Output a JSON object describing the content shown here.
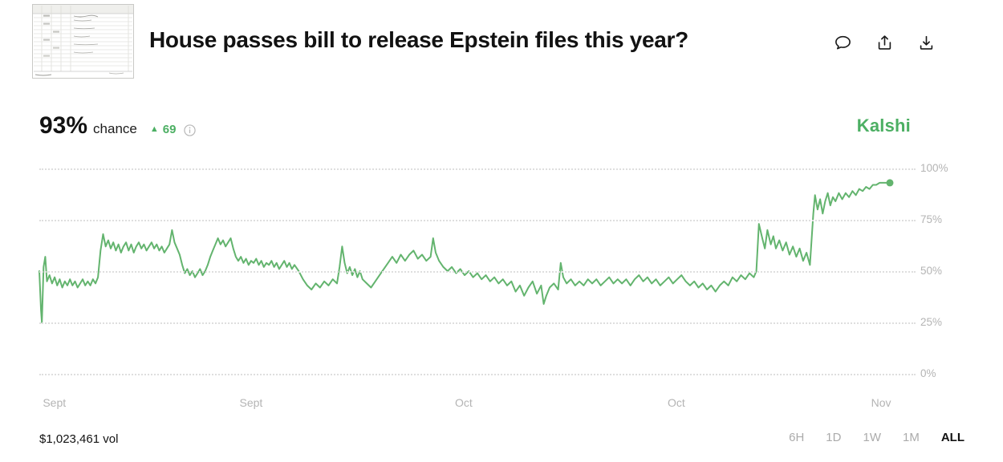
{
  "header": {
    "title": "House passes bill to release Epstein files this year?",
    "icons": {
      "comment": "speech-bubble-icon",
      "share": "share-up-arrow-icon",
      "download": "download-arrow-icon"
    }
  },
  "stats": {
    "chance": "93%",
    "chance_label": "chance",
    "delta_arrow": "▲",
    "delta": "69",
    "info_icon": "info-circle-icon"
  },
  "brand": {
    "name": "Kalshi"
  },
  "footer": {
    "volume": "$1,023,461 vol",
    "ranges": [
      "6H",
      "1D",
      "1W",
      "1M",
      "ALL"
    ],
    "active_range": "ALL"
  },
  "colors": {
    "line_green": "#63b46e",
    "brand_green": "#4caf63",
    "delta_green": "#4caf63",
    "axis_gray": "#b4b4b4",
    "grid_gray": "#dedede"
  },
  "chart_data": {
    "type": "line",
    "title": "House passes bill to release Epstein files this year?",
    "ylabel": "chance (%)",
    "ylim": [
      0,
      100
    ],
    "grid": true,
    "legend_position": "none",
    "y_ticks": [
      {
        "value": 0,
        "label": "0%"
      },
      {
        "value": 25,
        "label": "25%"
      },
      {
        "value": 50,
        "label": "50%"
      },
      {
        "value": 75,
        "label": "75%"
      },
      {
        "value": 100,
        "label": "100%"
      }
    ],
    "x_ticks": [
      {
        "pos": 0.4,
        "label": "Sept"
      },
      {
        "pos": 24.3,
        "label": "Sept"
      },
      {
        "pos": 48.7,
        "label": "Oct"
      },
      {
        "pos": 73.1,
        "label": "Oct"
      },
      {
        "pos": 96.6,
        "label": "Nov"
      }
    ],
    "end_value": 93,
    "points": [
      [
        0,
        50
      ],
      [
        0.2,
        31
      ],
      [
        0.3,
        25
      ],
      [
        0.5,
        52
      ],
      [
        0.7,
        57
      ],
      [
        0.9,
        45
      ],
      [
        1.2,
        48
      ],
      [
        1.5,
        44
      ],
      [
        1.8,
        47
      ],
      [
        2.1,
        43
      ],
      [
        2.4,
        46
      ],
      [
        2.7,
        42
      ],
      [
        3,
        45
      ],
      [
        3.3,
        43
      ],
      [
        3.6,
        46
      ],
      [
        3.9,
        43
      ],
      [
        4.2,
        45
      ],
      [
        4.5,
        42
      ],
      [
        4.8,
        44
      ],
      [
        5.1,
        46
      ],
      [
        5.4,
        43
      ],
      [
        5.7,
        45
      ],
      [
        6,
        43
      ],
      [
        6.3,
        46
      ],
      [
        6.6,
        44
      ],
      [
        6.9,
        47
      ],
      [
        7.2,
        60
      ],
      [
        7.5,
        68
      ],
      [
        7.8,
        62
      ],
      [
        8.1,
        65
      ],
      [
        8.4,
        61
      ],
      [
        8.7,
        64
      ],
      [
        9,
        60
      ],
      [
        9.3,
        63
      ],
      [
        9.6,
        59
      ],
      [
        9.9,
        62
      ],
      [
        10.2,
        64
      ],
      [
        10.5,
        60
      ],
      [
        10.8,
        63
      ],
      [
        11.1,
        59
      ],
      [
        11.4,
        62
      ],
      [
        11.7,
        64
      ],
      [
        12,
        61
      ],
      [
        12.3,
        63
      ],
      [
        12.6,
        60
      ],
      [
        12.9,
        62
      ],
      [
        13.2,
        64
      ],
      [
        13.5,
        61
      ],
      [
        13.8,
        63
      ],
      [
        14.1,
        60
      ],
      [
        14.4,
        62
      ],
      [
        14.7,
        59
      ],
      [
        15,
        61
      ],
      [
        15.3,
        63
      ],
      [
        15.6,
        70
      ],
      [
        15.9,
        64
      ],
      [
        16.2,
        61
      ],
      [
        16.5,
        58
      ],
      [
        16.8,
        53
      ],
      [
        17.1,
        49
      ],
      [
        17.4,
        51
      ],
      [
        17.7,
        48
      ],
      [
        18,
        50
      ],
      [
        18.3,
        47
      ],
      [
        18.6,
        49
      ],
      [
        18.9,
        51
      ],
      [
        19.2,
        48
      ],
      [
        19.5,
        50
      ],
      [
        19.8,
        53
      ],
      [
        20.1,
        57
      ],
      [
        20.4,
        60
      ],
      [
        20.7,
        63
      ],
      [
        21,
        66
      ],
      [
        21.3,
        63
      ],
      [
        21.6,
        65
      ],
      [
        21.9,
        62
      ],
      [
        22.2,
        64
      ],
      [
        22.5,
        66
      ],
      [
        22.8,
        61
      ],
      [
        23.1,
        57
      ],
      [
        23.4,
        55
      ],
      [
        23.7,
        57
      ],
      [
        24,
        54
      ],
      [
        24.3,
        56
      ],
      [
        24.6,
        53
      ],
      [
        24.9,
        55
      ],
      [
        25.2,
        54
      ],
      [
        25.5,
        56
      ],
      [
        25.8,
        53
      ],
      [
        26.1,
        55
      ],
      [
        26.4,
        52
      ],
      [
        26.7,
        54
      ],
      [
        27,
        53
      ],
      [
        27.3,
        55
      ],
      [
        27.6,
        52
      ],
      [
        27.9,
        54
      ],
      [
        28.2,
        51
      ],
      [
        28.5,
        53
      ],
      [
        28.8,
        55
      ],
      [
        29.1,
        52
      ],
      [
        29.4,
        54
      ],
      [
        29.7,
        51
      ],
      [
        30,
        53
      ],
      [
        30.5,
        50
      ],
      [
        31,
        46
      ],
      [
        31.5,
        43
      ],
      [
        32,
        41
      ],
      [
        32.5,
        44
      ],
      [
        33,
        42
      ],
      [
        33.5,
        45
      ],
      [
        34,
        43
      ],
      [
        34.5,
        46
      ],
      [
        35,
        44
      ],
      [
        35.3,
        52
      ],
      [
        35.6,
        62
      ],
      [
        35.9,
        54
      ],
      [
        36.2,
        49
      ],
      [
        36.5,
        52
      ],
      [
        36.8,
        48
      ],
      [
        37.1,
        51
      ],
      [
        37.4,
        47
      ],
      [
        37.7,
        50
      ],
      [
        38,
        46
      ],
      [
        38.5,
        44
      ],
      [
        39,
        42
      ],
      [
        39.5,
        45
      ],
      [
        40,
        48
      ],
      [
        40.5,
        51
      ],
      [
        41,
        54
      ],
      [
        41.5,
        57
      ],
      [
        42,
        54
      ],
      [
        42.5,
        58
      ],
      [
        43,
        55
      ],
      [
        43.5,
        58
      ],
      [
        44,
        60
      ],
      [
        44.5,
        56
      ],
      [
        45,
        58
      ],
      [
        45.5,
        55
      ],
      [
        46,
        57
      ],
      [
        46.3,
        66
      ],
      [
        46.6,
        59
      ],
      [
        47,
        55
      ],
      [
        47.5,
        52
      ],
      [
        48,
        50
      ],
      [
        48.5,
        52
      ],
      [
        49,
        49
      ],
      [
        49.5,
        51
      ],
      [
        50,
        48
      ],
      [
        50.5,
        50
      ],
      [
        51,
        47
      ],
      [
        51.5,
        49
      ],
      [
        52,
        46
      ],
      [
        52.5,
        48
      ],
      [
        53,
        45
      ],
      [
        53.5,
        47
      ],
      [
        54,
        44
      ],
      [
        54.5,
        46
      ],
      [
        55,
        43
      ],
      [
        55.5,
        45
      ],
      [
        56,
        40
      ],
      [
        56.5,
        43
      ],
      [
        57,
        38
      ],
      [
        57.5,
        42
      ],
      [
        58,
        45
      ],
      [
        58.5,
        39
      ],
      [
        59,
        43
      ],
      [
        59.3,
        34
      ],
      [
        59.6,
        38
      ],
      [
        60,
        42
      ],
      [
        60.5,
        44
      ],
      [
        61,
        41
      ],
      [
        61.3,
        54
      ],
      [
        61.6,
        47
      ],
      [
        62,
        44
      ],
      [
        62.5,
        46
      ],
      [
        63,
        43
      ],
      [
        63.5,
        45
      ],
      [
        64,
        43
      ],
      [
        64.5,
        46
      ],
      [
        65,
        44
      ],
      [
        65.5,
        46
      ],
      [
        66,
        43
      ],
      [
        66.5,
        45
      ],
      [
        67,
        47
      ],
      [
        67.5,
        44
      ],
      [
        68,
        46
      ],
      [
        68.5,
        44
      ],
      [
        69,
        46
      ],
      [
        69.5,
        43
      ],
      [
        70,
        46
      ],
      [
        70.5,
        48
      ],
      [
        71,
        45
      ],
      [
        71.5,
        47
      ],
      [
        72,
        44
      ],
      [
        72.5,
        46
      ],
      [
        73,
        43
      ],
      [
        73.5,
        45
      ],
      [
        74,
        47
      ],
      [
        74.5,
        44
      ],
      [
        75,
        46
      ],
      [
        75.5,
        48
      ],
      [
        76,
        45
      ],
      [
        76.5,
        43
      ],
      [
        77,
        45
      ],
      [
        77.5,
        42
      ],
      [
        78,
        44
      ],
      [
        78.5,
        41
      ],
      [
        79,
        43
      ],
      [
        79.5,
        40
      ],
      [
        80,
        43
      ],
      [
        80.5,
        45
      ],
      [
        81,
        43
      ],
      [
        81.5,
        47
      ],
      [
        82,
        45
      ],
      [
        82.5,
        48
      ],
      [
        83,
        46
      ],
      [
        83.5,
        49
      ],
      [
        84,
        47
      ],
      [
        84.3,
        50
      ],
      [
        84.6,
        73
      ],
      [
        85,
        66
      ],
      [
        85.3,
        61
      ],
      [
        85.6,
        70
      ],
      [
        86,
        63
      ],
      [
        86.3,
        67
      ],
      [
        86.6,
        61
      ],
      [
        87,
        65
      ],
      [
        87.4,
        60
      ],
      [
        87.8,
        64
      ],
      [
        88.2,
        58
      ],
      [
        88.6,
        62
      ],
      [
        89,
        57
      ],
      [
        89.4,
        61
      ],
      [
        89.8,
        55
      ],
      [
        90.2,
        59
      ],
      [
        90.6,
        53
      ],
      [
        91,
        78
      ],
      [
        91.2,
        87
      ],
      [
        91.5,
        80
      ],
      [
        91.8,
        85
      ],
      [
        92.1,
        78
      ],
      [
        92.4,
        84
      ],
      [
        92.7,
        88
      ],
      [
        93,
        82
      ],
      [
        93.3,
        86
      ],
      [
        93.6,
        84
      ],
      [
        94,
        88
      ],
      [
        94.4,
        85
      ],
      [
        94.8,
        88
      ],
      [
        95.2,
        86
      ],
      [
        95.6,
        89
      ],
      [
        96,
        87
      ],
      [
        96.4,
        90
      ],
      [
        96.8,
        89
      ],
      [
        97.2,
        91
      ],
      [
        97.6,
        90
      ],
      [
        98,
        92
      ],
      [
        98.4,
        92
      ],
      [
        98.8,
        93
      ],
      [
        99.4,
        93
      ],
      [
        100,
        93
      ]
    ]
  }
}
